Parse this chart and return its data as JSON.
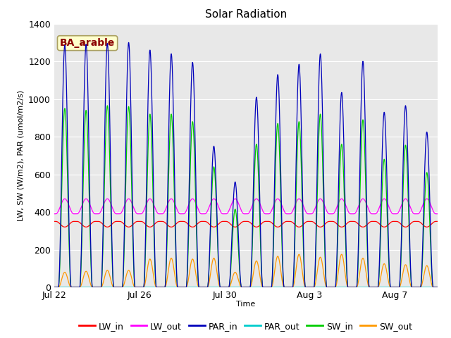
{
  "title": "Solar Radiation",
  "xlabel": "Time",
  "ylabel": "LW, SW (W/m2), PAR (umol/m2/s)",
  "annotation": "BA_arable",
  "ylim": [
    0,
    1400
  ],
  "background_color": "#ffffff",
  "plot_bg_color": "#e8e8e8",
  "legend": [
    "LW_in",
    "LW_out",
    "PAR_in",
    "PAR_out",
    "SW_in",
    "SW_out"
  ],
  "legend_colors": [
    "#ff0000",
    "#ff00ff",
    "#0000bb",
    "#00cccc",
    "#00cc00",
    "#ff9900"
  ],
  "num_days": 18,
  "lw_in_base": 350,
  "lw_in_day_min": 320,
  "lw_out_base": 390,
  "lw_out_day_peak": 470,
  "par_in_peaks": [
    1285,
    1290,
    1295,
    1300,
    1260,
    1240,
    1195,
    750,
    560,
    1010,
    1130,
    1185,
    1240,
    1035,
    1200,
    930,
    965,
    825
  ],
  "sw_in_peaks": [
    950,
    940,
    965,
    960,
    920,
    920,
    880,
    640,
    415,
    760,
    870,
    880,
    920,
    760,
    890,
    680,
    755,
    610
  ],
  "sw_out_peaks": [
    80,
    85,
    90,
    90,
    150,
    155,
    150,
    155,
    80,
    140,
    165,
    175,
    160,
    175,
    155,
    125,
    120,
    115
  ],
  "tick_positions": [
    0,
    4,
    8,
    12,
    16
  ],
  "tick_labels": [
    "Jul 22",
    "Jul 26",
    "Jul 30",
    "Aug 3",
    "Aug 7"
  ],
  "yticks": [
    0,
    200,
    400,
    600,
    800,
    1000,
    1200,
    1400
  ],
  "title_fontsize": 11,
  "label_fontsize": 8,
  "tick_fontsize": 9,
  "legend_fontsize": 9,
  "annotation_fontsize": 10
}
